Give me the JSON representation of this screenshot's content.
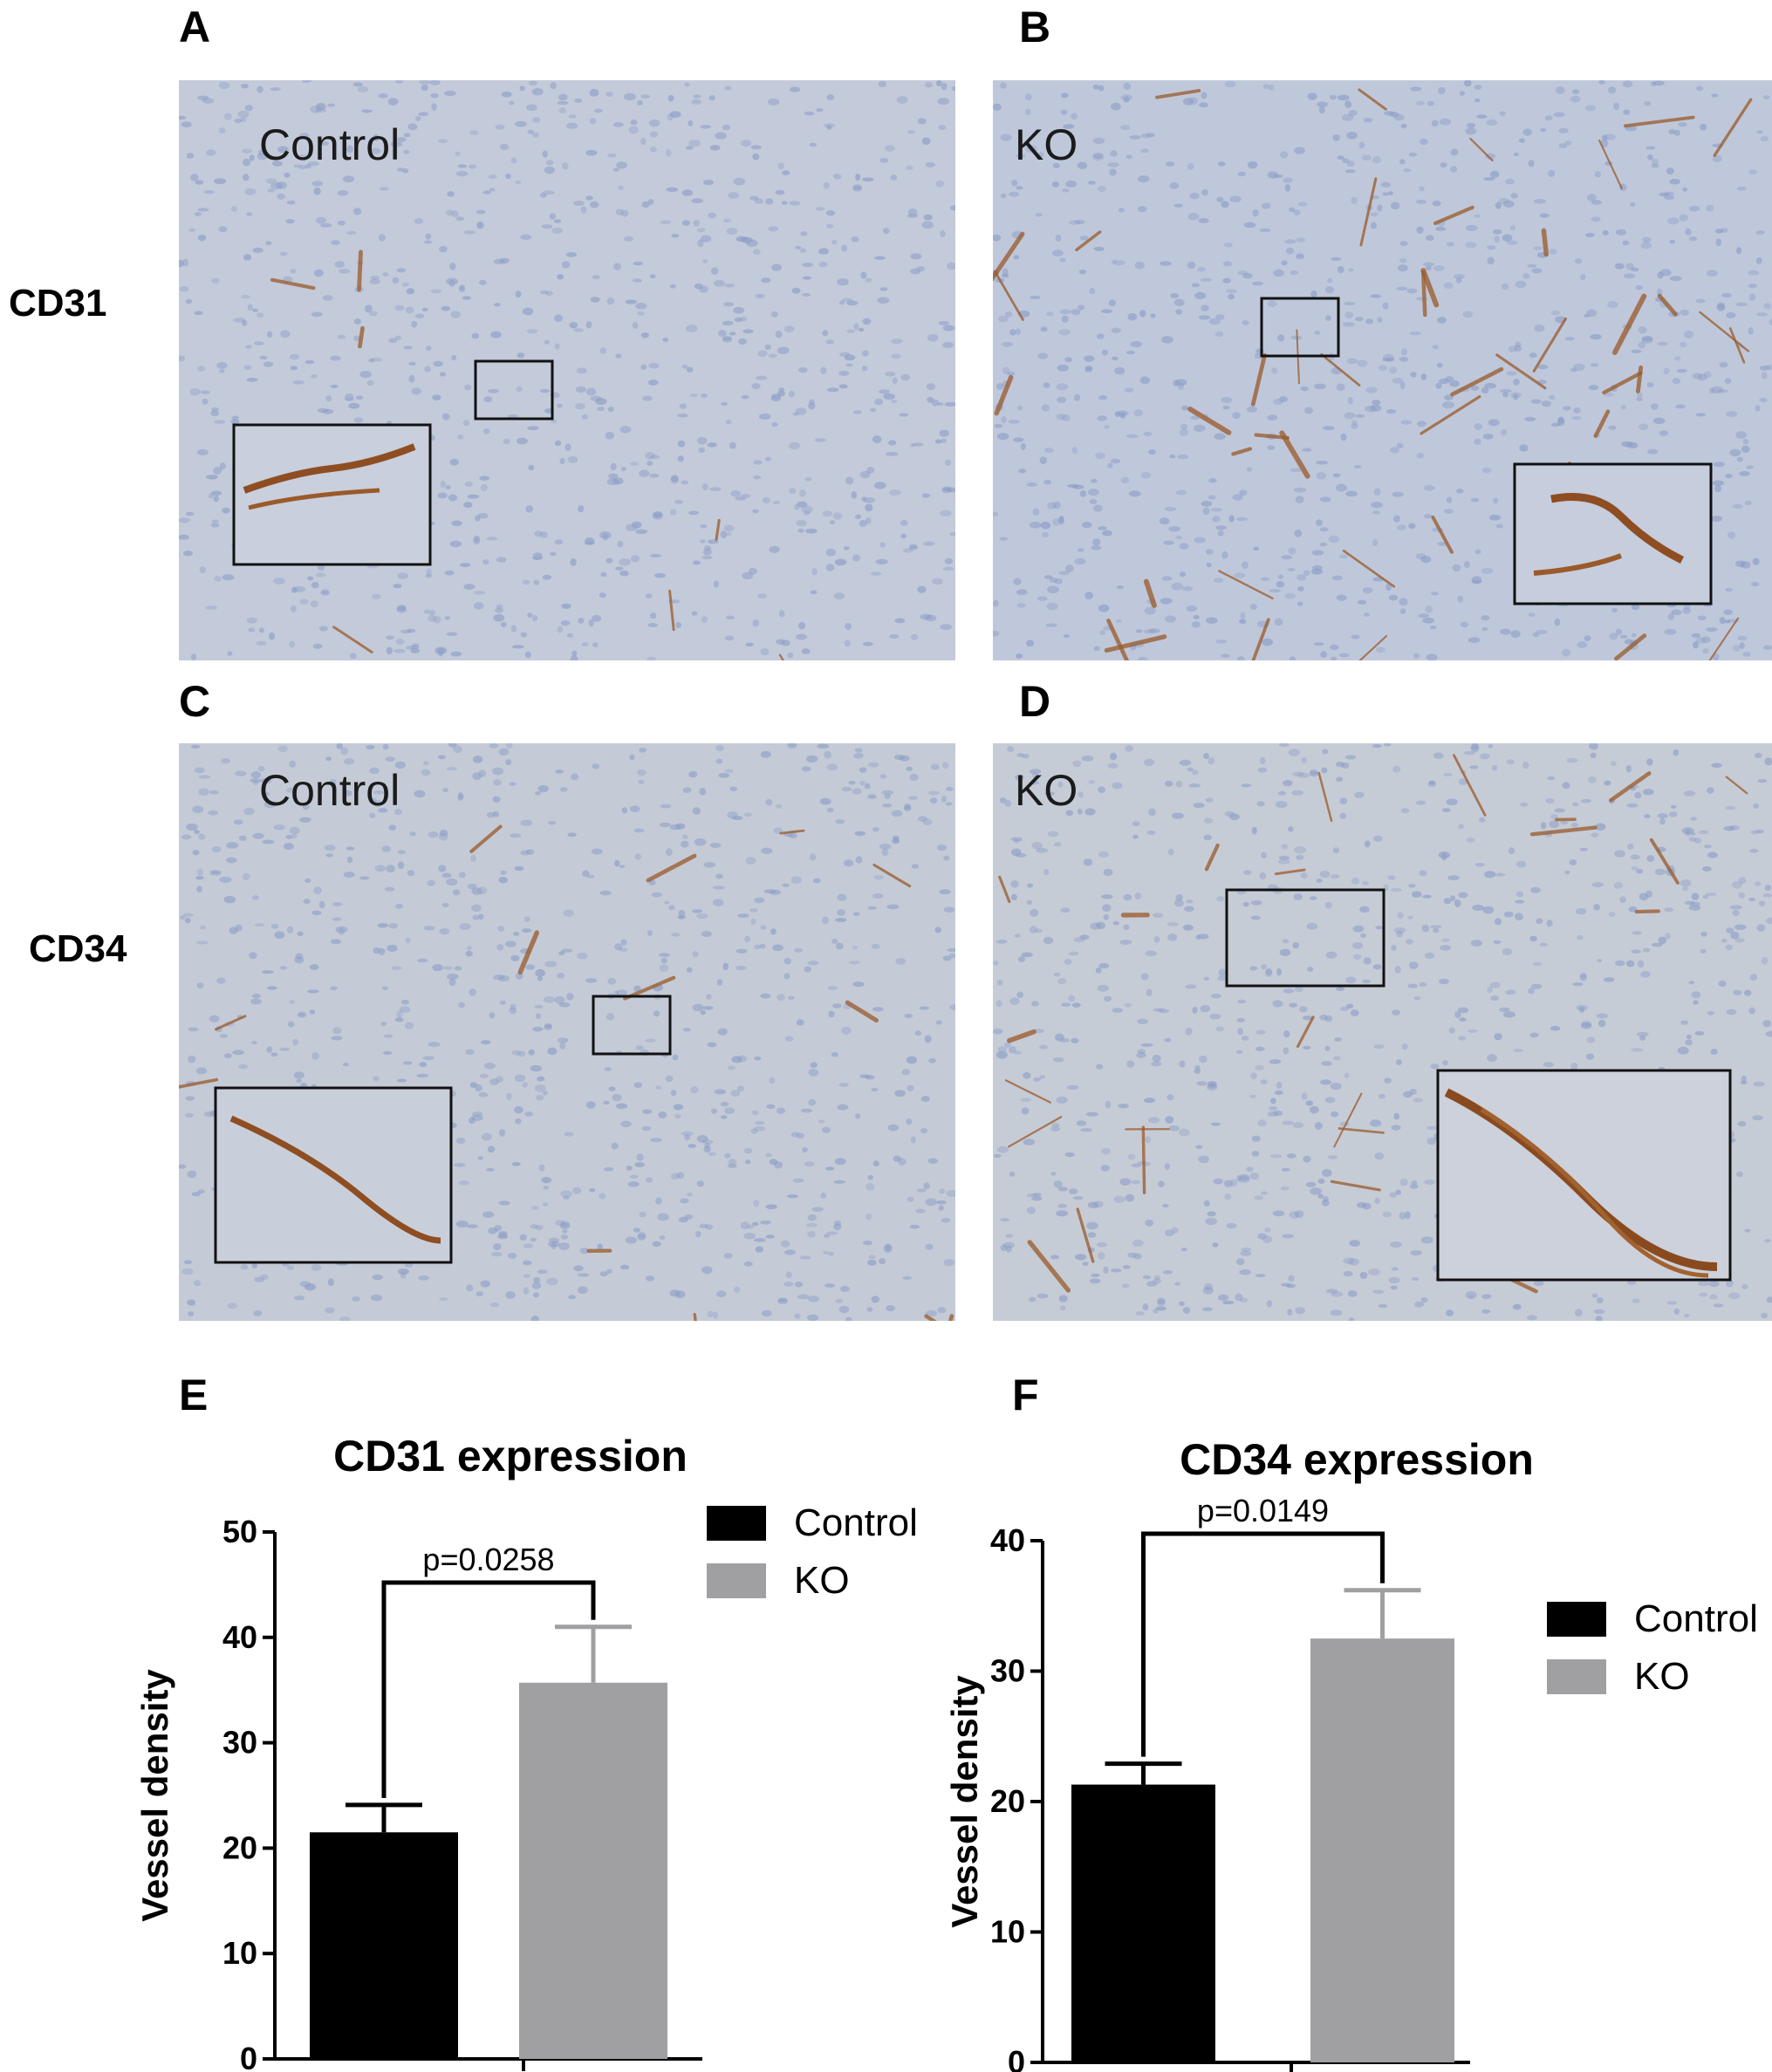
{
  "figure": {
    "panels": [
      {
        "letter": "A",
        "row": "CD31",
        "group": "Control"
      },
      {
        "letter": "B",
        "row": "CD31",
        "group": "KO"
      },
      {
        "letter": "C",
        "row": "CD34",
        "group": "Control"
      },
      {
        "letter": "D",
        "row": "CD34",
        "group": "KO"
      }
    ],
    "row_labels": [
      "CD31",
      "CD34"
    ],
    "chart_letters": [
      "E",
      "F"
    ]
  },
  "colors": {
    "control": "#000000",
    "ko": "#a0a0a3",
    "tissue_base": "#c2cad9",
    "nuclei": "#8b9cc6",
    "stain": "#9a5a2a"
  },
  "chart_data": [
    {
      "type": "bar",
      "title": "CD31 expression",
      "categories": [
        "Control",
        "KO"
      ],
      "values": [
        21.5,
        35.7
      ],
      "error": [
        2.6,
        5.3
      ],
      "ylabel": "Vessel density",
      "ylim": [
        0,
        50
      ],
      "yticks": [
        0,
        10,
        20,
        30,
        40,
        50
      ],
      "annotation": "p=0.0258",
      "legend": {
        "placement": "top-right",
        "entries": [
          "Control",
          "KO"
        ]
      },
      "grid": false
    },
    {
      "type": "bar",
      "title": "CD34 expression",
      "categories": [
        "Control",
        "KO"
      ],
      "values": [
        21.3,
        32.5
      ],
      "error": [
        1.6,
        3.7
      ],
      "ylabel": "Vessel density",
      "ylim": [
        0,
        40
      ],
      "yticks": [
        0,
        10,
        20,
        30,
        40
      ],
      "annotation": "p=0.0149",
      "legend": {
        "placement": "right",
        "entries": [
          "Control",
          "KO"
        ]
      },
      "grid": false
    }
  ]
}
